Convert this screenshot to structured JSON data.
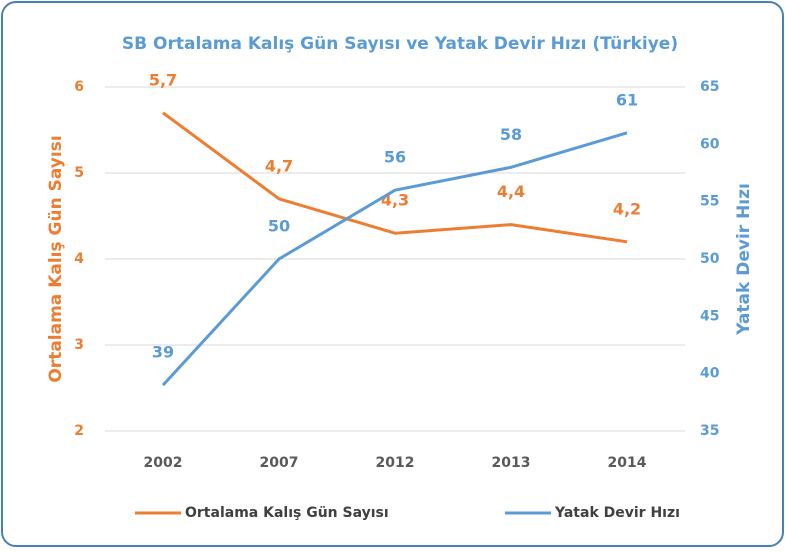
{
  "chart_data": {
    "type": "line",
    "title": "SB Ortalama Kalış Gün Sayısı ve Yatak Devir Hızı (Türkiye)",
    "categories": [
      "2002",
      "2007",
      "2012",
      "2013",
      "2014"
    ],
    "ylabel": "Ortalama Kalış Gün Sayısı",
    "y2label": "Yatak Devir Hızı",
    "ylim": [
      2,
      6
    ],
    "yticks": [
      2,
      3,
      4,
      5,
      6
    ],
    "y2lim": [
      35,
      65
    ],
    "y2ticks": [
      35,
      40,
      45,
      50,
      55,
      60,
      65
    ],
    "grid": true,
    "legend": "bottom",
    "series": [
      {
        "name": "Ortalama Kalış Gün Sayısı",
        "color": "#ed7d31",
        "values": [
          5.7,
          4.7,
          4.3,
          4.4,
          4.2
        ],
        "value_labels": [
          "5,7",
          "4,7",
          "4,3",
          "4,4",
          "4,2"
        ]
      },
      {
        "name": "Yatak Devir Hızı",
        "color": "#5b9bd5",
        "axis": "y2",
        "values": [
          39,
          50,
          56,
          58,
          61
        ]
      }
    ]
  }
}
